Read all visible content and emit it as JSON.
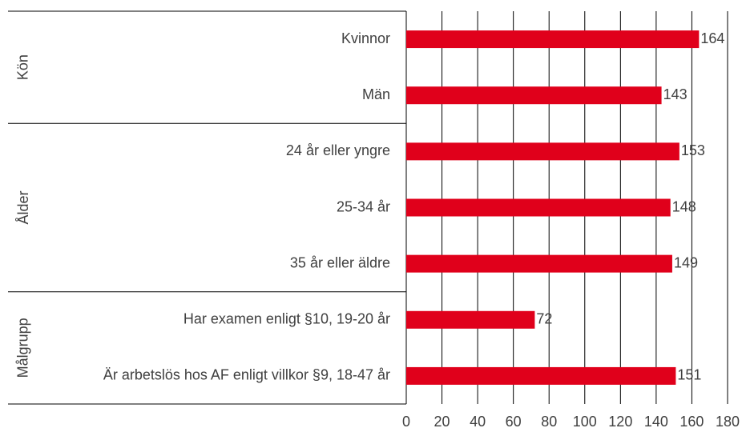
{
  "chart_data": {
    "type": "bar",
    "orientation": "horizontal",
    "color": "#e0001b",
    "groups": [
      {
        "label": "Kön",
        "categories": [
          "Kvinnor",
          "Män"
        ],
        "values": [
          164,
          143
        ]
      },
      {
        "label": "Ålder",
        "categories": [
          "24 år eller yngre",
          "25-34 år",
          "35 år eller äldre"
        ],
        "values": [
          153,
          148,
          149
        ]
      },
      {
        "label": "Målgrupp",
        "categories": [
          "Har examen enligt §10, 19-20 år",
          "Är arbetslös hos AF enligt villkor §9, 18-47 år"
        ],
        "values": [
          72,
          151
        ]
      }
    ],
    "xlim": [
      0,
      180
    ],
    "xticks": [
      0,
      20,
      40,
      60,
      80,
      100,
      120,
      140,
      160,
      180
    ],
    "grid": true
  }
}
